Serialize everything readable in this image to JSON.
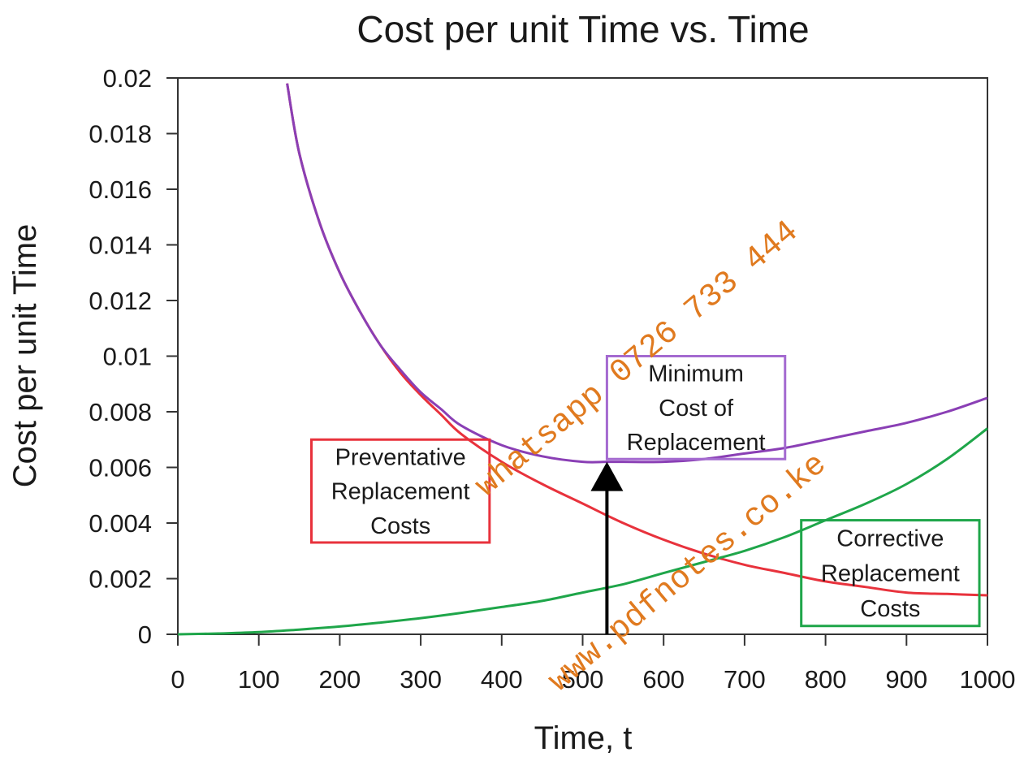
{
  "chart_data": {
    "type": "line",
    "title": "Cost per unit Time vs. Time",
    "xlabel": "Time, t",
    "ylabel": "Cost per unit Time",
    "xlim": [
      0,
      1000
    ],
    "ylim": [
      0,
      0.02
    ],
    "xticks": [
      0,
      100,
      200,
      300,
      400,
      500,
      600,
      700,
      800,
      900,
      1000
    ],
    "yticks": [
      0,
      0.002,
      0.004,
      0.006,
      0.008,
      0.01,
      0.012,
      0.014,
      0.016,
      0.018,
      0.02
    ],
    "ytick_labels": [
      "0",
      "0.002",
      "0.004",
      "0.006",
      "0.008",
      "0.01",
      "0.012",
      "0.014",
      "0.016",
      "0.018",
      "0.02"
    ],
    "grid": false,
    "series": [
      {
        "key": "preventative",
        "color": "#e8323c",
        "x": [
          135,
          150,
          175,
          200,
          225,
          250,
          275,
          300,
          325,
          350,
          400,
          450,
          500,
          550,
          600,
          650,
          700,
          750,
          800,
          850,
          900,
          950,
          1000
        ],
        "y": [
          0.0198,
          0.0173,
          0.0148,
          0.013,
          0.0116,
          0.0104,
          0.0094,
          0.0086,
          0.0079,
          0.0072,
          0.0062,
          0.0054,
          0.0047,
          0.004,
          0.0034,
          0.0029,
          0.0025,
          0.0022,
          0.0019,
          0.0017,
          0.0015,
          0.00145,
          0.0014
        ]
      },
      {
        "key": "corrective",
        "color": "#1fa64a",
        "x": [
          0,
          50,
          100,
          150,
          200,
          250,
          300,
          350,
          400,
          450,
          500,
          550,
          600,
          650,
          700,
          750,
          800,
          850,
          900,
          950,
          1000
        ],
        "y": [
          0.0,
          3e-05,
          8e-05,
          0.00017,
          0.00028,
          0.00042,
          0.00058,
          0.00077,
          0.00098,
          0.0012,
          0.0015,
          0.0018,
          0.0022,
          0.0026,
          0.003,
          0.0035,
          0.0041,
          0.0047,
          0.0054,
          0.0063,
          0.0074
        ]
      },
      {
        "key": "total",
        "color": "#8a3fb5",
        "x": [
          135,
          150,
          175,
          200,
          225,
          250,
          275,
          300,
          325,
          350,
          400,
          450,
          500,
          530,
          550,
          600,
          650,
          700,
          750,
          800,
          850,
          900,
          950,
          1000
        ],
        "y": [
          0.0198,
          0.0173,
          0.0148,
          0.013,
          0.0116,
          0.0104,
          0.0095,
          0.0087,
          0.0081,
          0.0075,
          0.0068,
          0.0064,
          0.0062,
          0.0062,
          0.0062,
          0.0062,
          0.0063,
          0.0065,
          0.0067,
          0.007,
          0.0073,
          0.0076,
          0.008,
          0.0085
        ]
      }
    ],
    "annotations": [
      {
        "key": "minimum",
        "lines": [
          "Minimum",
          "Cost of",
          "Replacement"
        ],
        "box_color": "#a46ad0",
        "anchor_x": [
          530,
          750
        ],
        "anchor_y": [
          0.0063,
          0.01
        ]
      },
      {
        "key": "preventative",
        "lines": [
          "Preventative",
          "Replacement",
          "Costs"
        ],
        "box_color": "#e8323c",
        "anchor_x": [
          165,
          385
        ],
        "anchor_y": [
          0.0033,
          0.007
        ]
      },
      {
        "key": "corrective",
        "lines": [
          "Corrective",
          "Replacement",
          "Costs"
        ],
        "box_color": "#1fa64a",
        "anchor_x": [
          770,
          990
        ],
        "anchor_y": [
          0.0003,
          0.0041
        ]
      }
    ],
    "arrow": {
      "x": 530,
      "y_from": 0.0,
      "y_to": 0.0062,
      "color": "#000000"
    }
  },
  "watermarks": [
    {
      "text": "whatsapp 0726 733 444"
    },
    {
      "text": "www.pdfnotes.co.ke"
    }
  ]
}
